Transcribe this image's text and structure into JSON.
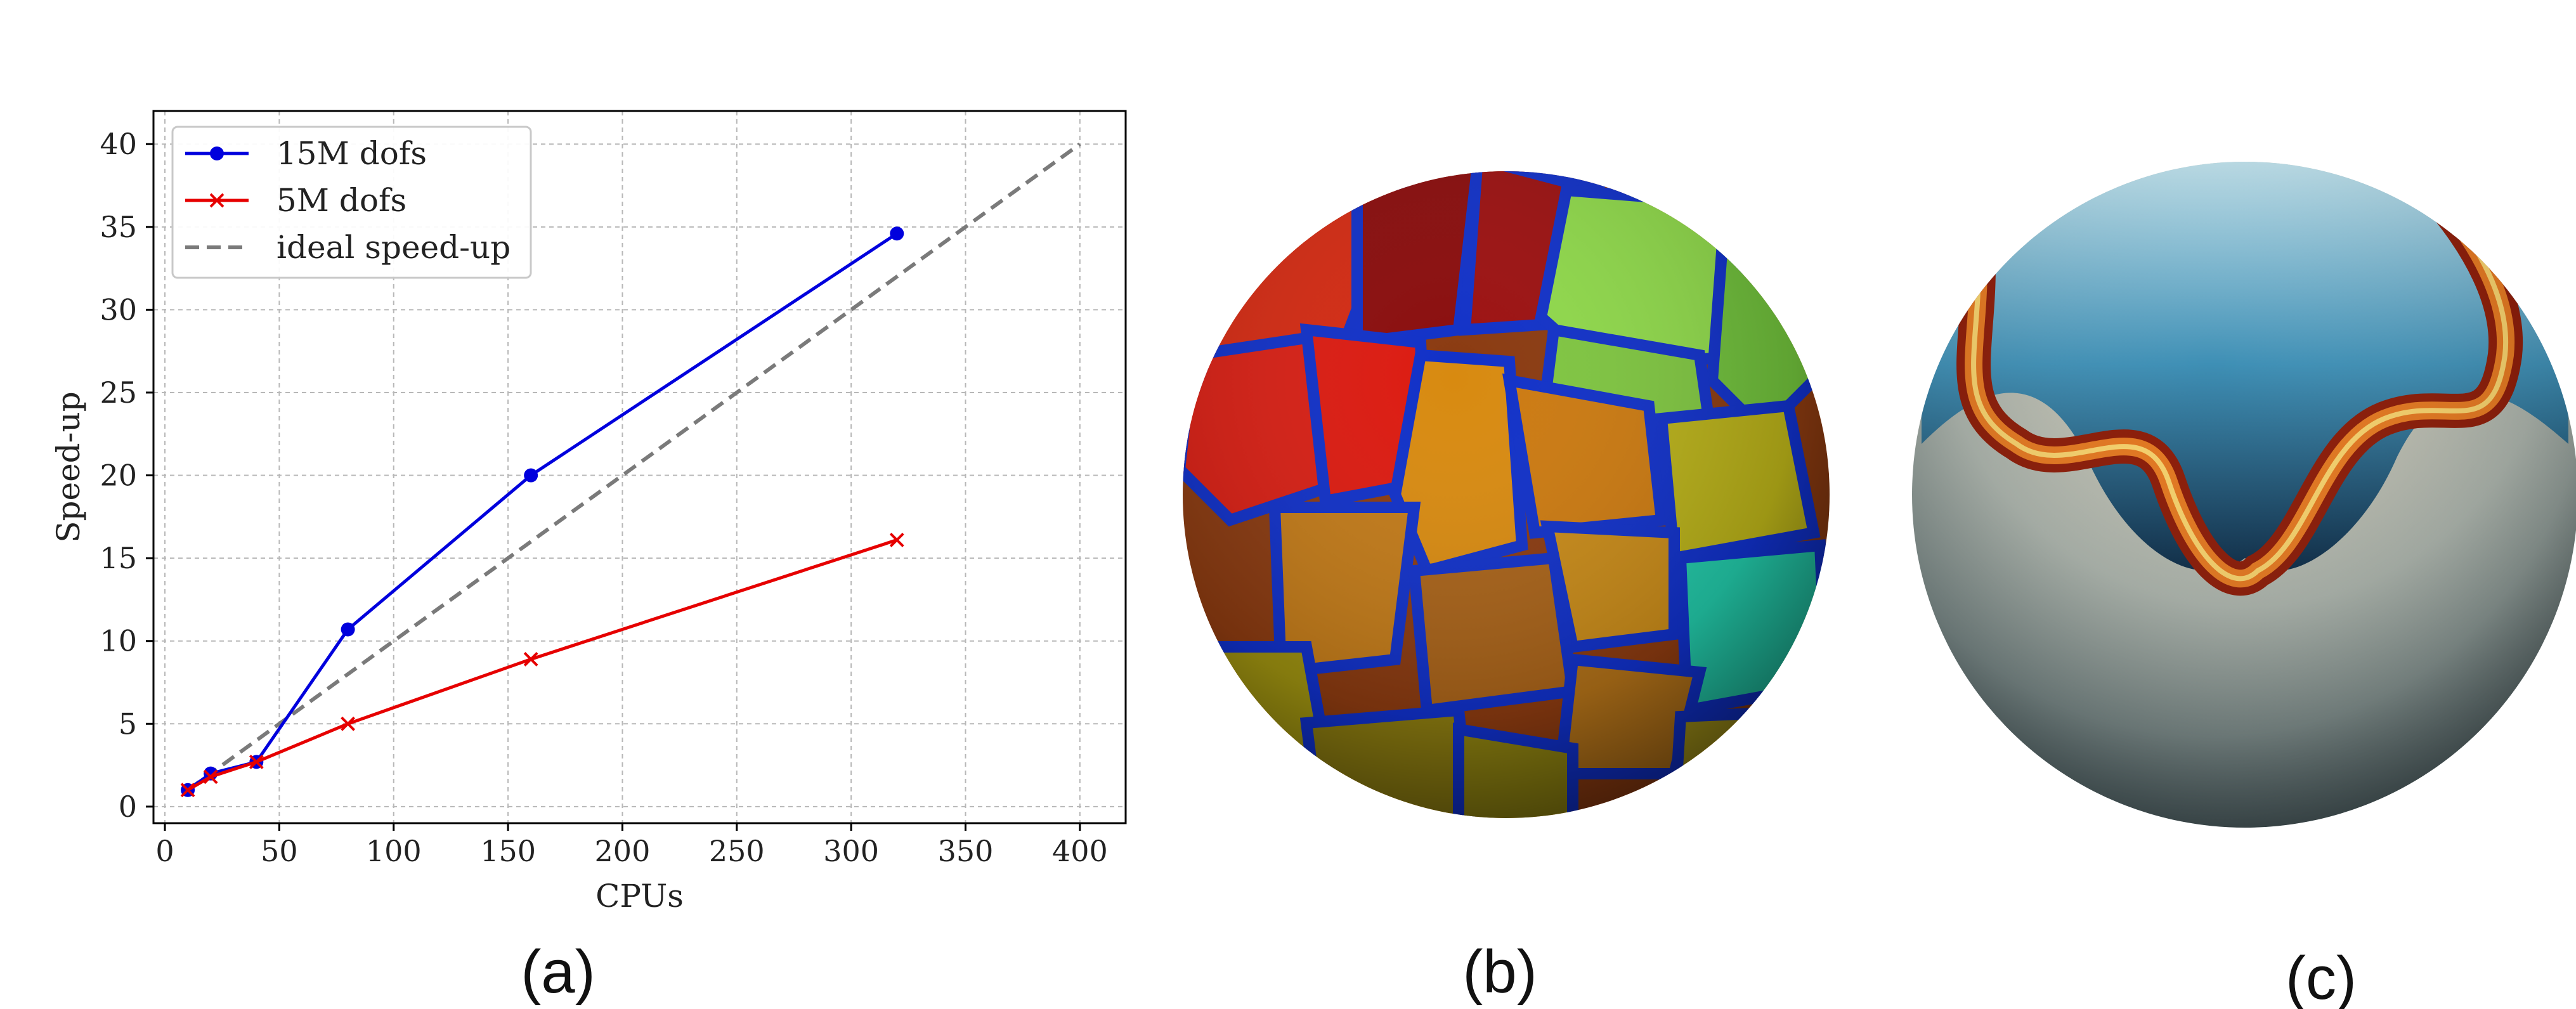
{
  "chart_data": {
    "type": "line",
    "xlabel": "CPUs",
    "ylabel": "Speed-up",
    "xlim": [
      -5,
      420
    ],
    "ylim": [
      -1,
      42
    ],
    "xticks": [
      0,
      50,
      100,
      150,
      200,
      250,
      300,
      350,
      400
    ],
    "yticks": [
      0,
      5,
      10,
      15,
      20,
      25,
      30,
      35,
      40
    ],
    "grid": true,
    "legend_position": "top-left",
    "series": [
      {
        "name": "15M dofs",
        "color": "#0000dd",
        "marker": "circle",
        "x": [
          10,
          20,
          40,
          80,
          160,
          320
        ],
        "y": [
          1,
          2,
          2.7,
          10.7,
          20,
          34.6
        ]
      },
      {
        "name": "5M dofs",
        "color": "#e60000",
        "marker": "x",
        "x": [
          10,
          20,
          40,
          80,
          160,
          320
        ],
        "y": [
          1,
          1.8,
          2.7,
          5,
          8.9,
          16.1
        ]
      },
      {
        "name": "ideal speed-up",
        "color": "#7a7a7a",
        "dashed": true,
        "x": [
          10,
          400
        ],
        "y": [
          1,
          40
        ]
      }
    ]
  },
  "panels": {
    "a": "(a)",
    "b": "(b)",
    "c": "(c)"
  }
}
